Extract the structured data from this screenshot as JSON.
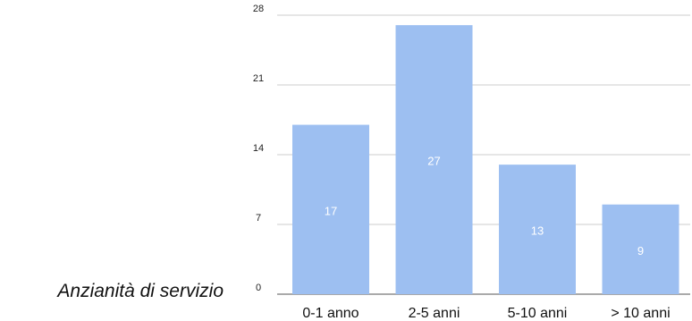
{
  "chart_data": {
    "type": "bar",
    "title": "Anzianità di servizio",
    "xlabel": "",
    "ylabel": "",
    "categories": [
      "0-1 anno",
      "2-5 anni",
      "5-10 anni",
      "> 10 anni"
    ],
    "values": [
      17,
      27,
      13,
      9
    ],
    "data_labels": [
      "17",
      "27",
      "13",
      "9"
    ],
    "ylim": [
      0,
      28
    ],
    "y_ticks": [
      0,
      7,
      14,
      21,
      28
    ],
    "grid": true,
    "legend": "none",
    "colors": {
      "bar": "#9dbff1",
      "gridline": "#cccccc",
      "axis": "#555555",
      "data_label": "#ffffff"
    }
  }
}
